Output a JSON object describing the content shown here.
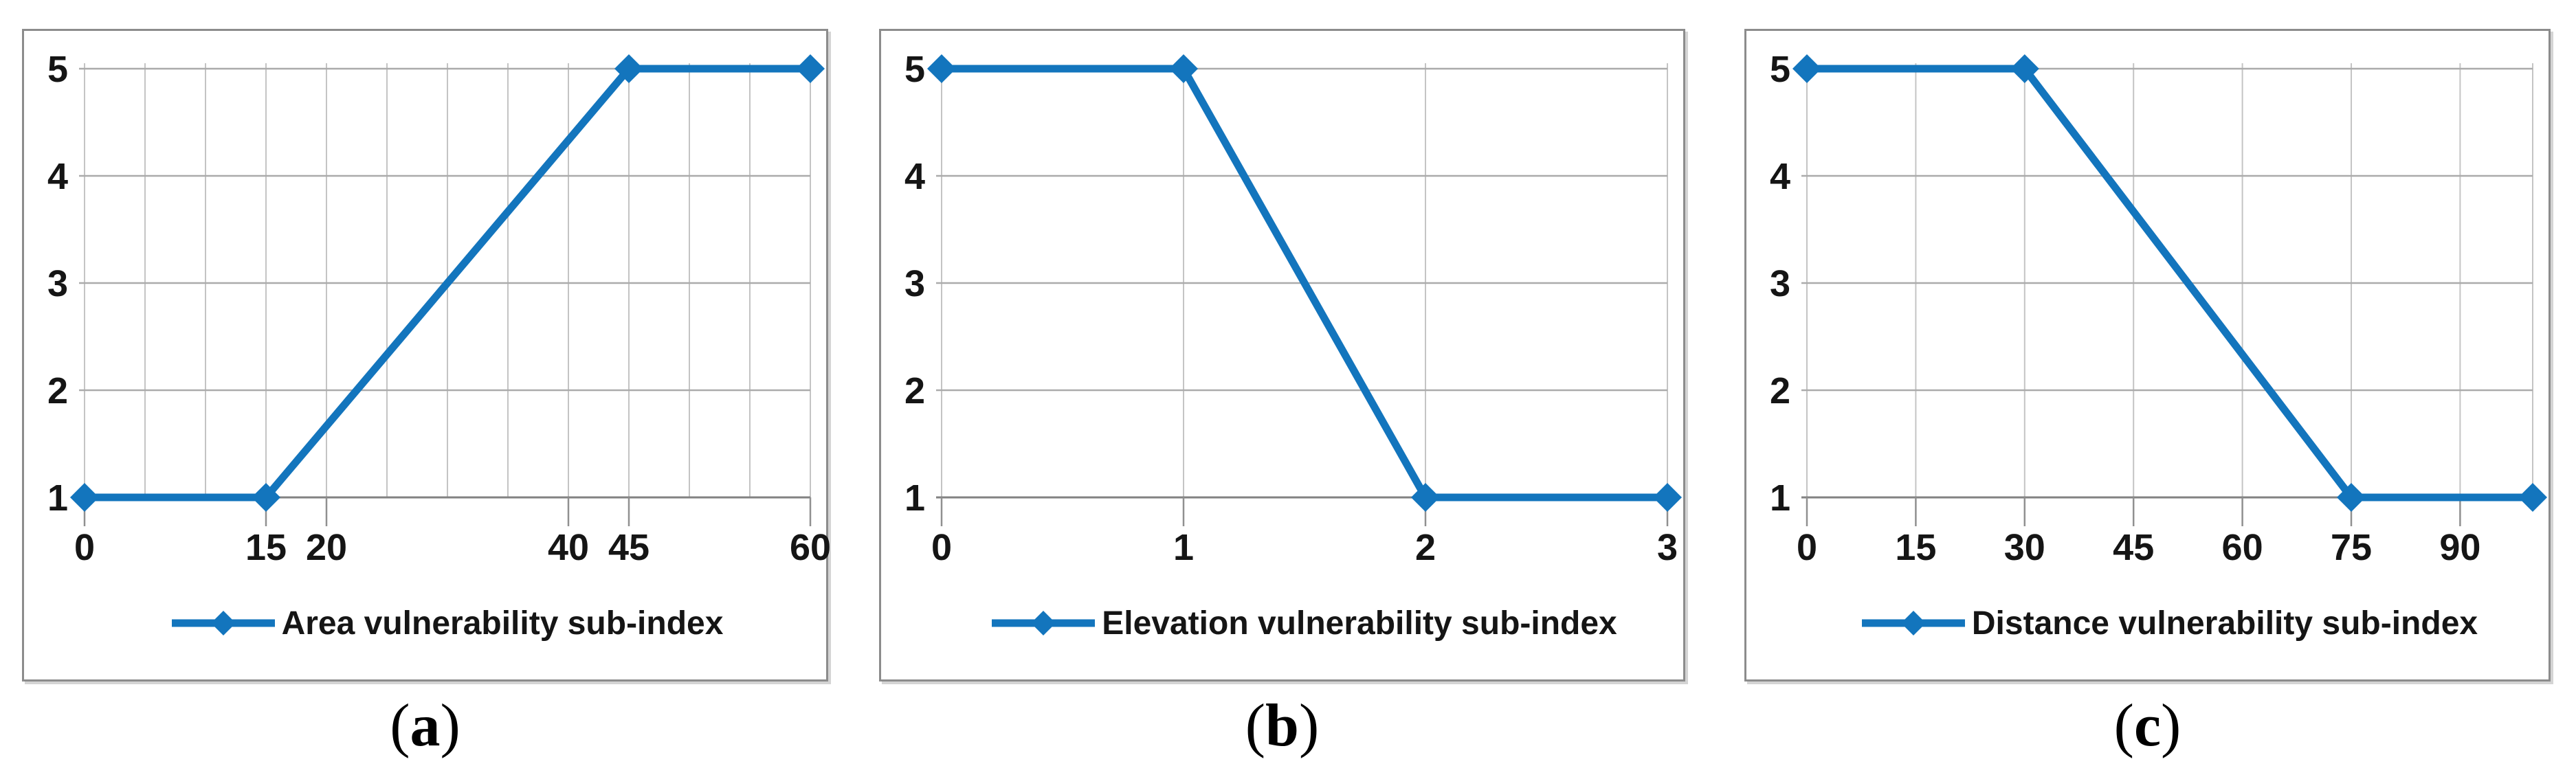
{
  "figure": {
    "background": "#ffffff",
    "panels": [
      {
        "caption_open": "(",
        "caption_letter": "a",
        "caption_close": ")"
      },
      {
        "caption_open": "(",
        "caption_letter": "b",
        "caption_close": ")"
      },
      {
        "caption_open": "(",
        "caption_letter": "c",
        "caption_close": ")"
      }
    ]
  },
  "colors": {
    "line": "#1375BD",
    "grid_vertical": "#C4C4C4",
    "grid_horizontal": "#ABABAB",
    "axis": "#828282",
    "tick": "#909090",
    "text": "#151515",
    "panel_border": "#8C8C8C",
    "background": "#FFFFFF"
  },
  "chart_data": [
    {
      "type": "line",
      "panel": "a",
      "legend": "Area vulnerability sub-index",
      "series": [
        {
          "name": "Area vulnerability sub-index",
          "points": [
            [
              0,
              1
            ],
            [
              15,
              1
            ],
            [
              45,
              5
            ],
            [
              60,
              5
            ]
          ]
        }
      ],
      "xlim": [
        0,
        60
      ],
      "ylim": [
        1,
        5
      ],
      "x_grid_step": 5,
      "x_tick_labels": [
        0,
        15,
        20,
        40,
        45,
        60
      ],
      "y_tick_labels": [
        1,
        2,
        3,
        4,
        5
      ],
      "marker": "diamond",
      "grid": true,
      "legend_position": "bottom"
    },
    {
      "type": "line",
      "panel": "b",
      "legend": "Elevation vulnerability sub-index",
      "series": [
        {
          "name": "Elevation vulnerability sub-index",
          "points": [
            [
              0,
              5
            ],
            [
              1,
              5
            ],
            [
              2,
              1
            ],
            [
              3,
              1
            ]
          ]
        }
      ],
      "xlim": [
        0,
        3
      ],
      "ylim": [
        1,
        5
      ],
      "x_grid_step": 1,
      "x_tick_labels": [
        0,
        1,
        2,
        3
      ],
      "y_tick_labels": [
        1,
        2,
        3,
        4,
        5
      ],
      "marker": "diamond",
      "grid": true,
      "legend_position": "bottom"
    },
    {
      "type": "line",
      "panel": "c",
      "legend": "Distance vulnerability sub-index",
      "series": [
        {
          "name": "Distance vulnerability sub-index",
          "points": [
            [
              0,
              5
            ],
            [
              30,
              5
            ],
            [
              75,
              1
            ],
            [
              100,
              1
            ]
          ]
        }
      ],
      "xlim": [
        0,
        100
      ],
      "ylim": [
        1,
        5
      ],
      "x_grid_step": 15,
      "x_tick_labels": [
        0,
        15,
        30,
        45,
        60,
        75,
        90
      ],
      "y_tick_labels": [
        1,
        2,
        3,
        4,
        5
      ],
      "marker": "diamond",
      "grid": true,
      "legend_position": "bottom"
    }
  ]
}
